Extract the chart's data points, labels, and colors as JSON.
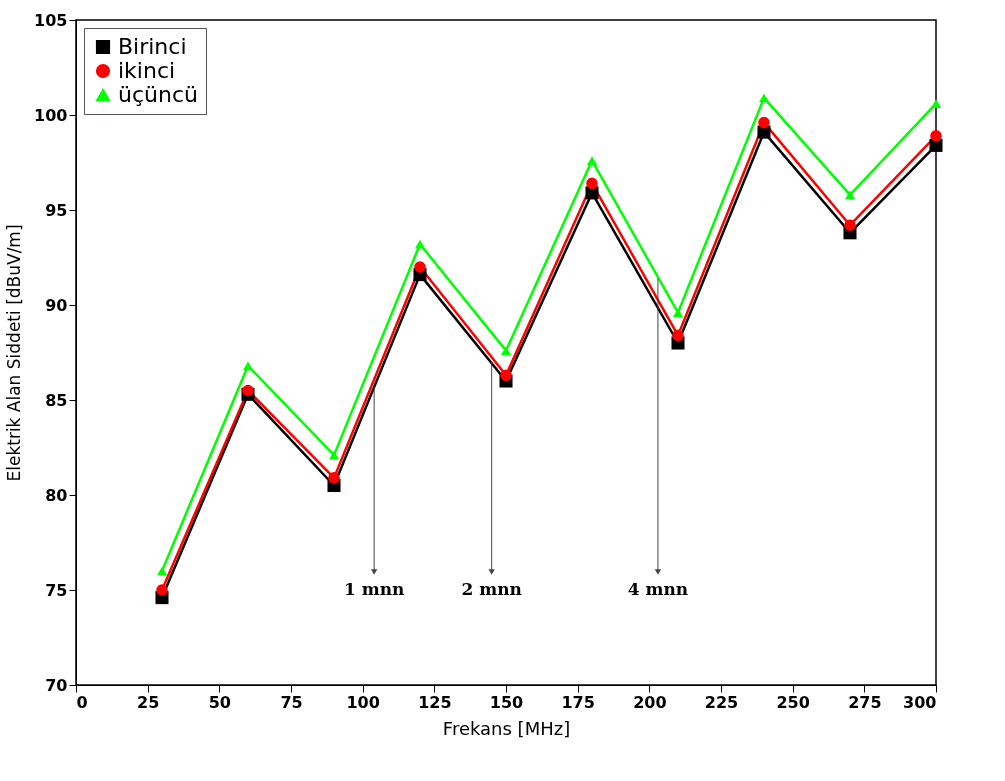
{
  "chart_data": {
    "type": "line",
    "xlabel": "Frekans [MHz]",
    "ylabel": "Elektrik Alan Siddeti [dBuV/m]",
    "x": [
      30,
      60,
      90,
      120,
      150,
      180,
      210,
      240,
      270,
      300
    ],
    "series": [
      {
        "name": "Birinci",
        "color": "#000000",
        "marker": "square",
        "values": [
          74.6,
          85.3,
          80.5,
          91.6,
          86.0,
          95.9,
          88.0,
          99.1,
          93.8,
          98.4
        ]
      },
      {
        "name": "ikinci",
        "color": "#ff0000",
        "marker": "circle",
        "values": [
          75.0,
          85.5,
          80.9,
          92.0,
          86.3,
          96.4,
          88.4,
          99.6,
          94.2,
          98.9
        ]
      },
      {
        "name": "üçüncü",
        "color": "#00ff00",
        "marker": "triangle",
        "values": [
          76.0,
          86.8,
          82.1,
          93.2,
          87.6,
          97.6,
          89.6,
          100.9,
          95.8,
          100.6
        ]
      }
    ],
    "xlim": [
      0,
      300
    ],
    "xticks": [
      0,
      25,
      50,
      75,
      100,
      125,
      150,
      175,
      200,
      225,
      250,
      275,
      300
    ],
    "ylim": [
      70,
      105
    ],
    "yticks": [
      70,
      75,
      80,
      85,
      90,
      95,
      100,
      105
    ],
    "grid": false,
    "legend": "top left",
    "line_style": "solid",
    "annotations": [
      {
        "text": "1 mnn",
        "x": 104,
        "y": 85.7
      },
      {
        "text": "2 mnn",
        "x": 145,
        "y": 87.0
      },
      {
        "text": "4 mnn",
        "x": 203,
        "y": 91.4
      }
    ]
  }
}
